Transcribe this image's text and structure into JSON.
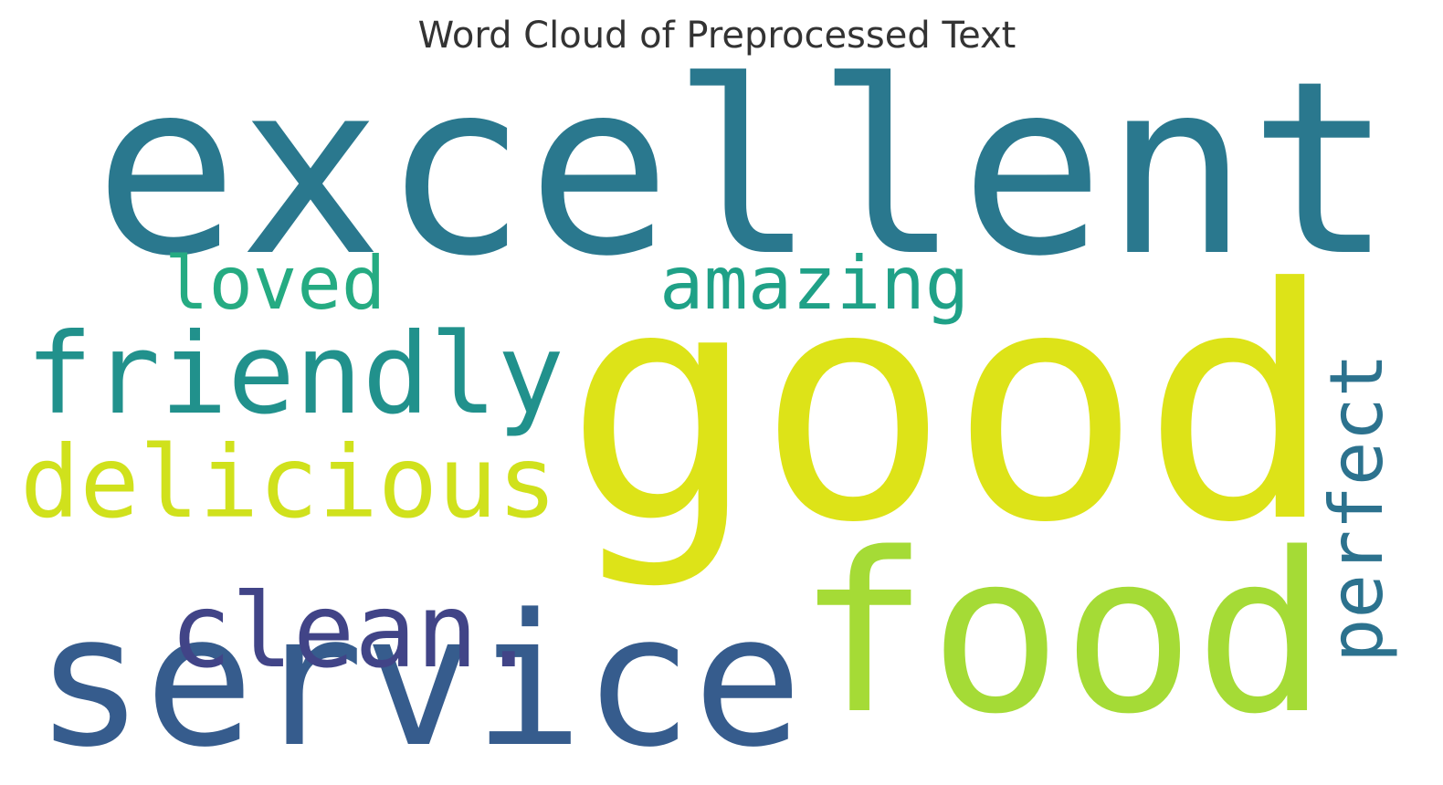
{
  "chart_data": {
    "type": "wordcloud",
    "title": "Word Cloud of Preprocessed Text",
    "categories": [
      "good",
      "excellent",
      "food",
      "service",
      "friendly",
      "delicious",
      "clean.",
      "amazing",
      "loved",
      "perfect"
    ],
    "values": [
      1,
      0.75,
      0.69,
      0.57,
      0.35,
      0.31,
      0.32,
      0.23,
      0.23,
      0.23
    ],
    "colors": [
      "#dde318",
      "#2a788e",
      "#a5db36",
      "#365c8d",
      "#21918c",
      "#d0e11c",
      "#414487",
      "#1fa187",
      "#25ab82",
      "#2c728e"
    ]
  }
}
